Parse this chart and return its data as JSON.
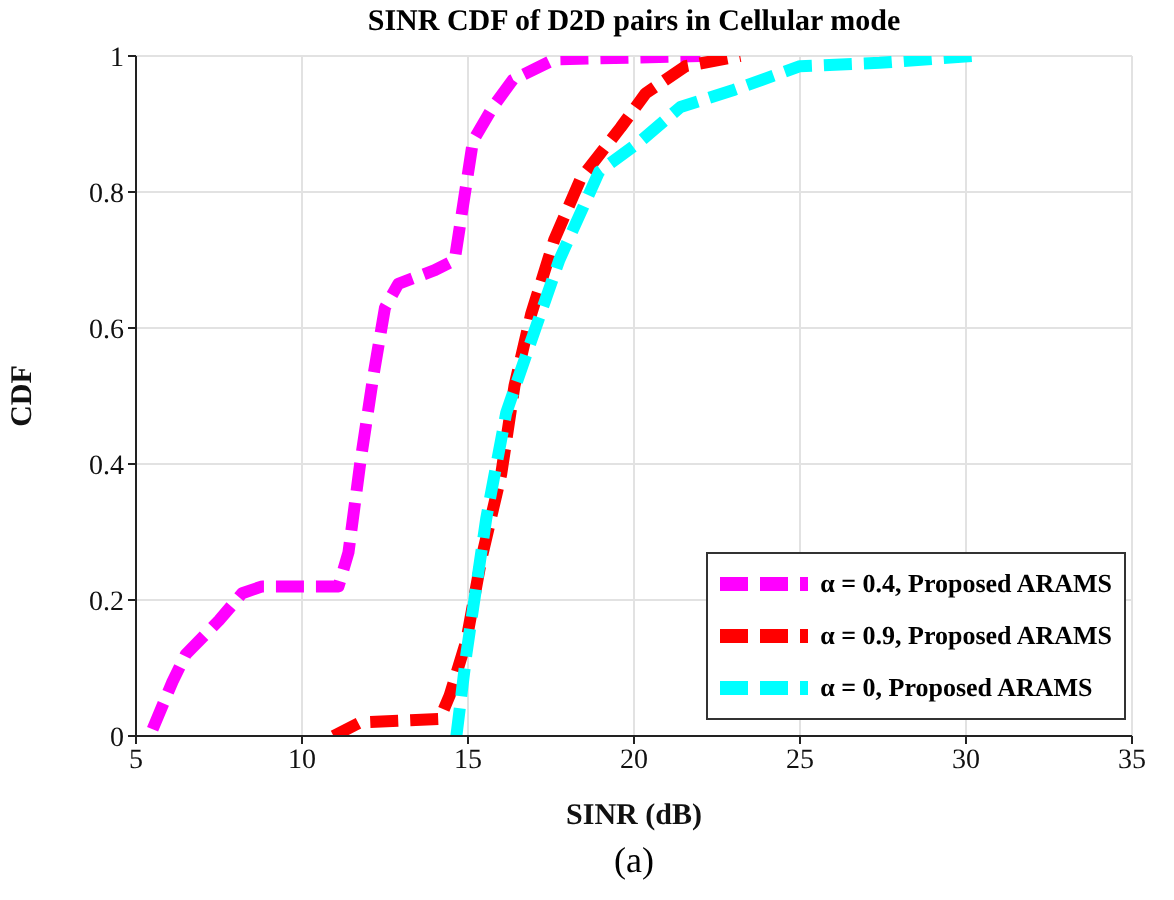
{
  "chart_data": {
    "type": "line",
    "title": "SINR CDF of D2D pairs in Cellular mode",
    "xlabel": "SINR (dB)",
    "ylabel": "CDF",
    "annotations": [
      "(a)"
    ],
    "xlim": [
      5,
      35
    ],
    "xticks": [
      5,
      10,
      15,
      20,
      25,
      30,
      35
    ],
    "ylim": [
      0,
      1
    ],
    "yticks": [
      0,
      0.2,
      0.4,
      0.6,
      0.8,
      1
    ],
    "grid": true,
    "legend": "bottom right",
    "line_style": "dashed",
    "marker": "none",
    "series": [
      {
        "name": "α = 0.4, Proposed ARAMS",
        "color": "#ff00ff",
        "x": [
          5.5,
          6.1,
          6.5,
          7.5,
          8.2,
          8.8,
          11.1,
          11.4,
          11.75,
          12.15,
          12.5,
          12.9,
          14.0,
          14.6,
          14.85,
          15.15,
          15.75,
          16.35,
          17.6,
          22.0
        ],
        "values": [
          0.01,
          0.08,
          0.12,
          0.17,
          0.21,
          0.22,
          0.22,
          0.27,
          0.4,
          0.53,
          0.63,
          0.665,
          0.685,
          0.7,
          0.78,
          0.875,
          0.925,
          0.965,
          0.995,
          1.0
        ]
      },
      {
        "name": "α = 0.9, Proposed ARAMS",
        "color": "#ff0000",
        "x": [
          10.95,
          11.75,
          14.15,
          14.45,
          14.95,
          15.4,
          16.0,
          16.4,
          16.9,
          17.6,
          18.4,
          19.6,
          20.35,
          21.55,
          23.2
        ],
        "values": [
          0,
          0.02,
          0.025,
          0.06,
          0.14,
          0.26,
          0.385,
          0.515,
          0.62,
          0.73,
          0.82,
          0.895,
          0.945,
          0.985,
          1.0
        ]
      },
      {
        "name": "α = 0, Proposed ARAMS",
        "color": "#00ffff",
        "x": [
          14.65,
          14.95,
          15.55,
          16.15,
          16.75,
          17.75,
          18.95,
          20.2,
          21.4,
          23.0,
          25.0,
          27.4,
          30.2
        ],
        "values": [
          0,
          0.12,
          0.32,
          0.475,
          0.56,
          0.7,
          0.83,
          0.875,
          0.925,
          0.95,
          0.985,
          0.99,
          1.0
        ]
      }
    ]
  }
}
